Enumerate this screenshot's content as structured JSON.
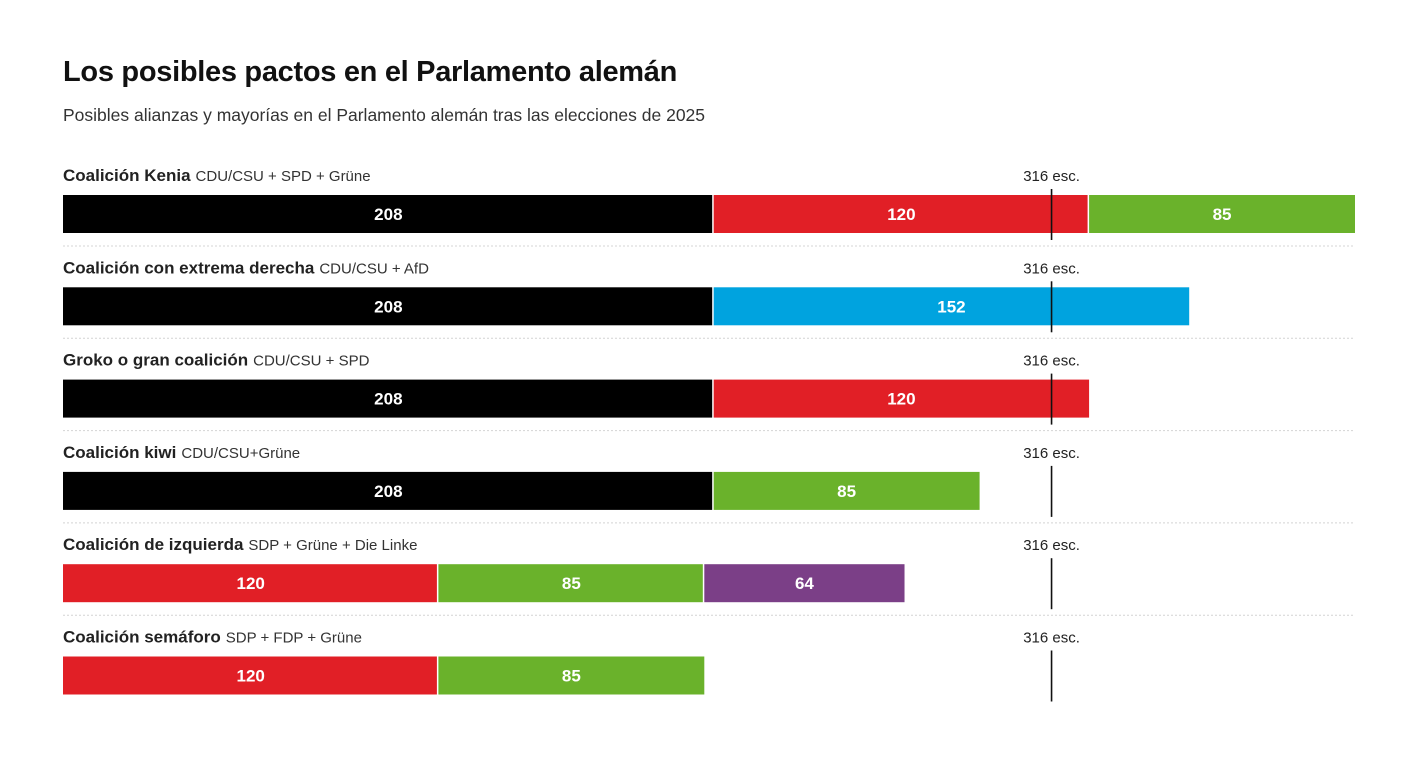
{
  "header": {
    "title": "Los posibles pactos en el Parlamento alemán",
    "subtitle": "Posibles alianzas y mayorías en el Parlamento alemán tras las elecciones de 2025"
  },
  "colors": {
    "CDU/CSU": "#000000",
    "SPD": "#e11f26",
    "Grüne": "#6ab22b",
    "AfD": "#00a3df",
    "Die Linke": "#7b3f87"
  },
  "chart_data": {
    "type": "bar",
    "orientation": "horizontal-stacked",
    "title": "Los posibles pactos en el Parlamento alemán",
    "subtitle": "Posibles alianzas y mayorías en el Parlamento alemán tras las elecciones de 2025",
    "xlim": [
      0,
      413
    ],
    "grid": false,
    "threshold": {
      "value": 316,
      "label": "316 esc."
    },
    "rows": [
      {
        "name": "Coalición Kenia",
        "parties_label": "CDU/CSU + SPD + Grüne",
        "segments": [
          {
            "party": "CDU/CSU",
            "value": 208
          },
          {
            "party": "SPD",
            "value": 120
          },
          {
            "party": "Grüne",
            "value": 85
          }
        ]
      },
      {
        "name": "Coalición con extrema derecha",
        "parties_label": "CDU/CSU + AfD",
        "segments": [
          {
            "party": "CDU/CSU",
            "value": 208
          },
          {
            "party": "AfD",
            "value": 152
          }
        ]
      },
      {
        "name": "Groko o gran coalición",
        "parties_label": "CDU/CSU + SPD",
        "segments": [
          {
            "party": "CDU/CSU",
            "value": 208
          },
          {
            "party": "SPD",
            "value": 120
          }
        ]
      },
      {
        "name": "Coalición kiwi",
        "parties_label": "CDU/CSU+Grüne",
        "segments": [
          {
            "party": "CDU/CSU",
            "value": 208
          },
          {
            "party": "Grüne",
            "value": 85
          }
        ]
      },
      {
        "name": "Coalición de izquierda",
        "parties_label": "SDP + Grüne + Die Linke",
        "segments": [
          {
            "party": "SPD",
            "value": 120
          },
          {
            "party": "Grüne",
            "value": 85
          },
          {
            "party": "Die Linke",
            "value": 64
          }
        ]
      },
      {
        "name": "Coalición semáforo",
        "parties_label": "SDP + FDP + Grüne",
        "segments": [
          {
            "party": "SPD",
            "value": 120
          },
          {
            "party": "Grüne",
            "value": 85
          }
        ]
      }
    ]
  }
}
